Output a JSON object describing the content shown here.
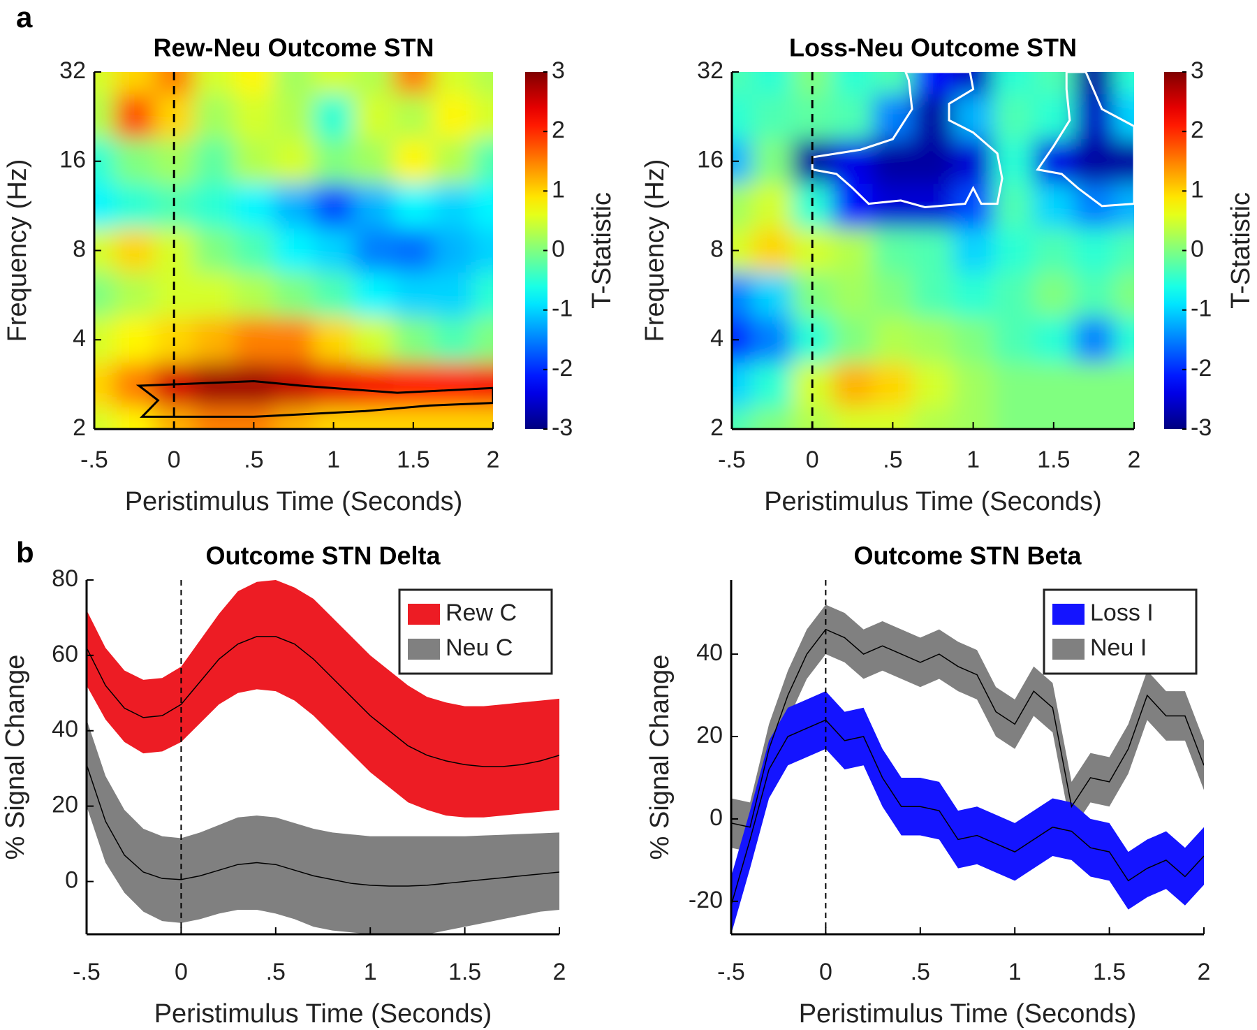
{
  "panel_labels": [
    "a",
    "b"
  ],
  "chart_data": [
    {
      "type": "heatmap",
      "title": "Rew-Neu Outcome STN",
      "xlabel": "Peristimulus Time (Seconds)",
      "ylabel": "Frequency (Hz)",
      "xlim": [
        -0.5,
        2
      ],
      "xticks": [
        {
          "value": -0.5,
          "label": "-.5"
        },
        0,
        {
          "value": 0.5,
          "label": ".5"
        },
        1,
        1.5,
        2
      ],
      "ylim": [
        2,
        32
      ],
      "ylog": true,
      "yticks": [
        2,
        4,
        8,
        16,
        32
      ],
      "clim": [
        -3,
        3
      ],
      "cticks": [
        -3,
        -2,
        -1,
        0,
        1,
        2,
        3
      ],
      "colorbar_label": "T-Statistic",
      "colormap": "jet",
      "vline": 0,
      "x": [
        -0.5,
        -0.25,
        0,
        0.25,
        0.5,
        0.75,
        1,
        1.25,
        1.5,
        1.75,
        2
      ],
      "y": [
        32,
        22.6,
        16,
        11.3,
        8,
        5.7,
        4,
        2.8,
        2
      ],
      "z": [
        [
          0.5,
          1,
          1.5,
          0.5,
          0.8,
          0.2,
          0.5,
          0.3,
          1.5,
          0.5,
          0.3
        ],
        [
          0.3,
          1.8,
          1,
          0.2,
          0.5,
          0.3,
          -0.5,
          0.5,
          0.3,
          0.8,
          0.5
        ],
        [
          -0.5,
          0,
          0.2,
          -0.2,
          0.3,
          0.5,
          0,
          0.2,
          0.8,
          0.3,
          -0.3
        ],
        [
          -0.8,
          -0.5,
          -0.3,
          -0.5,
          -0.8,
          -1.2,
          -1.8,
          -1.2,
          -0.8,
          -1,
          -0.8
        ],
        [
          0.5,
          1,
          0.5,
          0,
          -0.3,
          -0.8,
          -1,
          -1.5,
          -1.6,
          -1.2,
          -1
        ],
        [
          0,
          0.3,
          0.5,
          0.5,
          0.3,
          0,
          -0.3,
          -0.8,
          -1,
          -1,
          -0.5
        ],
        [
          0.5,
          0.8,
          1,
          1.2,
          1.5,
          1.5,
          1,
          0.5,
          0,
          -0.3,
          0
        ],
        [
          1,
          1.5,
          2.5,
          2.8,
          2.8,
          2.6,
          2.4,
          2.3,
          2.2,
          2.2,
          2.3
        ],
        [
          0.5,
          0.8,
          1.2,
          1.5,
          1.5,
          1.2,
          1,
          1,
          1,
          1,
          1
        ]
      ],
      "cluster_color": "#000000",
      "clusters": [
        [
          [
            -0.22,
            2.8
          ],
          [
            0.5,
            2.9
          ],
          [
            0.8,
            2.8
          ],
          [
            1.4,
            2.65
          ],
          [
            2,
            2.75
          ],
          [
            2,
            2.45
          ],
          [
            1.6,
            2.4
          ],
          [
            1.2,
            2.3
          ],
          [
            0.5,
            2.2
          ],
          [
            -0.2,
            2.2
          ],
          [
            -0.1,
            2.5
          ]
        ]
      ]
    },
    {
      "type": "heatmap",
      "title": "Loss-Neu Outcome STN",
      "xlabel": "Peristimulus Time (Seconds)",
      "ylabel": "Frequency (Hz)",
      "xlim": [
        -0.5,
        2
      ],
      "xticks": [
        {
          "value": -0.5,
          "label": "-.5"
        },
        0,
        {
          "value": 0.5,
          "label": ".5"
        },
        1,
        1.5,
        2
      ],
      "ylim": [
        2,
        32
      ],
      "ylog": true,
      "yticks": [
        2,
        4,
        8,
        16,
        32
      ],
      "clim": [
        -3,
        3
      ],
      "cticks": [
        -3,
        -2,
        -1,
        0,
        1,
        2,
        3
      ],
      "colorbar_label": "T-Statistic",
      "colormap": "jet",
      "vline": 0,
      "x": [
        -0.5,
        -0.25,
        0,
        0.25,
        0.5,
        0.75,
        1,
        1.25,
        1.5,
        1.75,
        2
      ],
      "y": [
        32,
        22.6,
        16,
        11.3,
        8,
        5.7,
        4,
        2.8,
        2
      ],
      "z": [
        [
          -0.3,
          -0.5,
          0,
          -0.5,
          -0.3,
          -2.2,
          -2.6,
          -0.5,
          -0.3,
          -2.8,
          -0.5
        ],
        [
          -0.5,
          -0.3,
          -0.2,
          -0.3,
          -1.5,
          -2.8,
          -1.2,
          -0.3,
          -0.5,
          -2.6,
          -1.0
        ],
        [
          -1.2,
          0,
          -2.8,
          -2.4,
          -2.8,
          -2.8,
          -2.5,
          -0.5,
          -2.4,
          -2.8,
          -2.8
        ],
        [
          0.2,
          0.5,
          -0.5,
          -2.2,
          -2.5,
          -2.5,
          -1.8,
          -0.3,
          -1,
          -1.5,
          -1.2
        ],
        [
          0.5,
          1,
          0.5,
          0.3,
          -0.2,
          -0.3,
          -1,
          -0.5,
          -0.3,
          -0.5,
          -0.3
        ],
        [
          -1.5,
          -1,
          0,
          0.2,
          0,
          -0.3,
          -0.5,
          -0.3,
          0,
          -0.3,
          0
        ],
        [
          -2,
          -1.5,
          -0.5,
          0,
          0.3,
          0.2,
          0,
          -0.3,
          -0.5,
          -1.5,
          -0.5
        ],
        [
          -1,
          -0.5,
          0.5,
          1.2,
          1,
          0.5,
          0.2,
          0,
          0,
          0,
          0
        ],
        [
          -0.3,
          0,
          0.3,
          0.5,
          0.5,
          0.3,
          0.2,
          0,
          0,
          0,
          0
        ]
      ],
      "cluster_color": "#ffffff",
      "clusters": [
        [
          [
            0,
            16.5
          ],
          [
            0.3,
            17.5
          ],
          [
            0.5,
            19
          ],
          [
            0.62,
            24
          ],
          [
            0.6,
            30
          ],
          [
            0.58,
            32
          ],
          [
            0.98,
            32
          ],
          [
            1.0,
            28
          ],
          [
            0.85,
            25
          ],
          [
            0.85,
            22
          ],
          [
            1.0,
            20
          ],
          [
            1.15,
            17
          ],
          [
            1.18,
            14
          ],
          [
            1.15,
            11.5
          ],
          [
            1.05,
            11.5
          ],
          [
            1.0,
            13
          ],
          [
            0.95,
            11.5
          ],
          [
            0.7,
            11.2
          ],
          [
            0.55,
            11.8
          ],
          [
            0.35,
            11.5
          ],
          [
            0.25,
            13
          ],
          [
            0.15,
            14.5
          ],
          [
            0,
            15
          ]
        ],
        [
          [
            1.58,
            32
          ],
          [
            1.7,
            32
          ],
          [
            1.8,
            24
          ],
          [
            2,
            21
          ],
          [
            2,
            11.5
          ],
          [
            1.8,
            11.3
          ],
          [
            1.65,
            13
          ],
          [
            1.55,
            14.5
          ],
          [
            1.4,
            15
          ],
          [
            1.5,
            18
          ],
          [
            1.6,
            22
          ],
          [
            1.58,
            28
          ]
        ]
      ]
    },
    {
      "type": "band_line",
      "title": "Outcome STN Delta",
      "xlabel": "Peristimulus Time (Seconds)",
      "ylabel": "% Signal Change",
      "xlim": [
        -0.5,
        2
      ],
      "xticks": [
        {
          "value": -0.5,
          "label": "-.5"
        },
        0,
        {
          "value": 0.5,
          "label": ".5"
        },
        1,
        1.5,
        2
      ],
      "ylim": [
        -14,
        80
      ],
      "yticks": [
        0,
        20,
        40,
        60,
        80
      ],
      "vline": 0,
      "legend": "upper right",
      "x": [
        -0.5,
        -0.4,
        -0.3,
        -0.2,
        -0.1,
        0,
        0.1,
        0.2,
        0.3,
        0.4,
        0.5,
        0.6,
        0.7,
        0.8,
        0.9,
        1.0,
        1.1,
        1.2,
        1.3,
        1.4,
        1.5,
        1.6,
        1.7,
        1.8,
        1.9,
        2.0
      ],
      "series": [
        {
          "name": "Rew C",
          "color": "#ed1c24",
          "values": [
            62,
            52,
            46,
            43.5,
            44,
            47,
            53,
            59,
            63,
            65,
            65,
            63,
            59,
            54,
            49,
            44,
            40,
            36,
            33.5,
            32,
            31,
            30.5,
            30.5,
            31,
            32,
            33.5
          ],
          "upper": [
            72,
            62,
            56,
            53.5,
            54,
            57,
            64,
            71,
            77,
            79.5,
            80,
            78,
            75,
            70,
            65,
            60,
            56,
            52,
            49,
            47.5,
            46.5,
            46.5,
            47,
            47.5,
            48,
            48.5
          ],
          "lower": [
            52,
            43,
            37,
            34,
            34.5,
            37,
            42,
            47,
            50,
            51,
            50.5,
            48,
            44,
            39,
            34,
            29,
            25,
            21,
            19,
            17.5,
            17,
            17,
            17.5,
            18,
            18.5,
            19
          ]
        },
        {
          "name": "Neu C",
          "color": "#808080",
          "values": [
            31,
            16,
            7,
            2.5,
            0.8,
            0.5,
            1.5,
            3,
            4.5,
            5,
            4.5,
            3,
            1.5,
            0.5,
            -0.5,
            -1,
            -1.2,
            -1.2,
            -1,
            -0.5,
            0,
            0.5,
            1,
            1.5,
            2,
            2.5
          ],
          "upper": [
            43,
            28,
            19,
            14,
            12,
            11.5,
            13,
            15,
            17,
            17.5,
            17,
            15.5,
            14,
            13,
            12.5,
            12,
            12,
            12,
            12,
            12,
            12,
            12.2,
            12.4,
            12.6,
            12.8,
            13
          ],
          "lower": [
            20,
            5,
            -3,
            -8,
            -10.5,
            -11,
            -10,
            -8.5,
            -7.5,
            -7.5,
            -8.5,
            -10,
            -12,
            -13,
            -13.5,
            -14,
            -14,
            -14,
            -14,
            -13,
            -12,
            -11,
            -10,
            -9,
            -8,
            -7.5
          ]
        }
      ]
    },
    {
      "type": "band_line",
      "title": "Outcome STN Beta",
      "xlabel": "Peristimulus Time (Seconds)",
      "ylabel": "% Signal Change",
      "xlim": [
        -0.5,
        2
      ],
      "xticks": [
        {
          "value": -0.5,
          "label": "-.5"
        },
        0,
        {
          "value": 0.5,
          "label": ".5"
        },
        1,
        1.5,
        2
      ],
      "ylim": [
        -28,
        58
      ],
      "yticks": [
        -20,
        0,
        20,
        40
      ],
      "vline": 0,
      "legend": "upper right",
      "x": [
        -0.5,
        -0.4,
        -0.3,
        -0.2,
        -0.1,
        0,
        0.1,
        0.2,
        0.3,
        0.4,
        0.5,
        0.6,
        0.7,
        0.8,
        0.9,
        1.0,
        1.1,
        1.2,
        1.3,
        1.4,
        1.5,
        1.6,
        1.7,
        1.8,
        1.9,
        2.0
      ],
      "series": [
        {
          "name": "Loss I",
          "color": "#1414ff",
          "values": [
            -21,
            -5,
            12,
            20,
            22,
            24,
            19,
            20,
            10,
            3,
            3,
            2,
            -5,
            -4,
            -6,
            -8,
            -5,
            -2,
            -3,
            -7,
            -8,
            -15,
            -12,
            -10,
            -14,
            -9
          ],
          "upper": [
            -14,
            2,
            19,
            27,
            29,
            31,
            26,
            27,
            17,
            10,
            10,
            9,
            2,
            3,
            1,
            -1,
            2,
            5,
            4,
            0,
            -1,
            -8,
            -5,
            -3,
            -7,
            -2
          ],
          "lower": [
            -28,
            -12,
            5,
            13,
            15,
            17,
            12,
            13,
            3,
            -4,
            -4,
            -5,
            -12,
            -11,
            -13,
            -15,
            -12,
            -9,
            -10,
            -14,
            -15,
            -22,
            -19,
            -17,
            -21,
            -16
          ]
        },
        {
          "name": "Neu I",
          "color": "#808080",
          "values": [
            -1,
            -2,
            17,
            30,
            40,
            46,
            44,
            40,
            42,
            40,
            38,
            40,
            37,
            35,
            26,
            23,
            31,
            27,
            3,
            10,
            9,
            17,
            30,
            25,
            25,
            13
          ],
          "upper": [
            5,
            4,
            23,
            36,
            46,
            52,
            50,
            46,
            48,
            46,
            44,
            46,
            43,
            41,
            32,
            29,
            37,
            33,
            9,
            16,
            15,
            23,
            36,
            31,
            31,
            19
          ],
          "lower": [
            -7,
            -8,
            11,
            24,
            34,
            40,
            38,
            34,
            36,
            34,
            32,
            34,
            31,
            29,
            20,
            17,
            25,
            21,
            -3,
            4,
            3,
            11,
            24,
            19,
            19,
            7
          ]
        }
      ]
    }
  ]
}
